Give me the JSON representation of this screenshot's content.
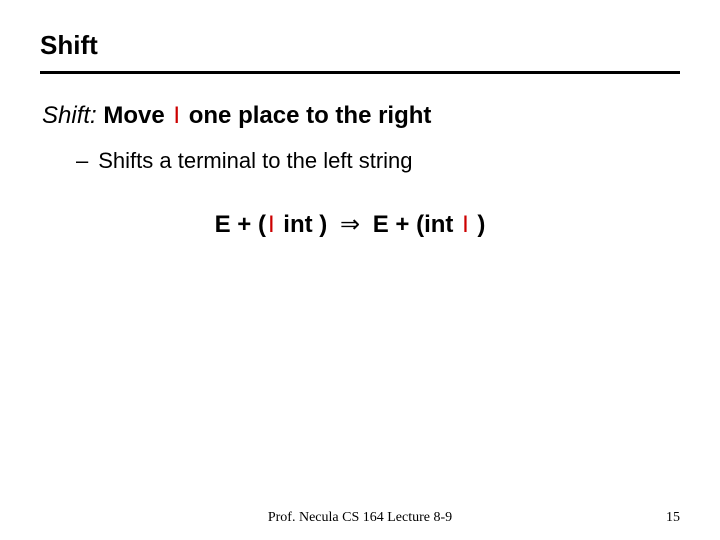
{
  "slide": {
    "title": "Shift",
    "main_prefix": "Shift:",
    "main_mid_a": " Move ",
    "marker": "I",
    "main_mid_b": " one place to the right",
    "sub_dash": "–",
    "sub_text": "Shifts a terminal to the left string",
    "formula_lhs_a": "E + (",
    "formula_lhs_b": " int )",
    "arrow": "⇒",
    "formula_rhs_a": "E + (int ",
    "formula_rhs_b": " )"
  },
  "footer": {
    "center": "Prof. Necula  CS 164  Lecture 8-9",
    "page": "15"
  },
  "style": {
    "marker_color": "#cc0000"
  }
}
